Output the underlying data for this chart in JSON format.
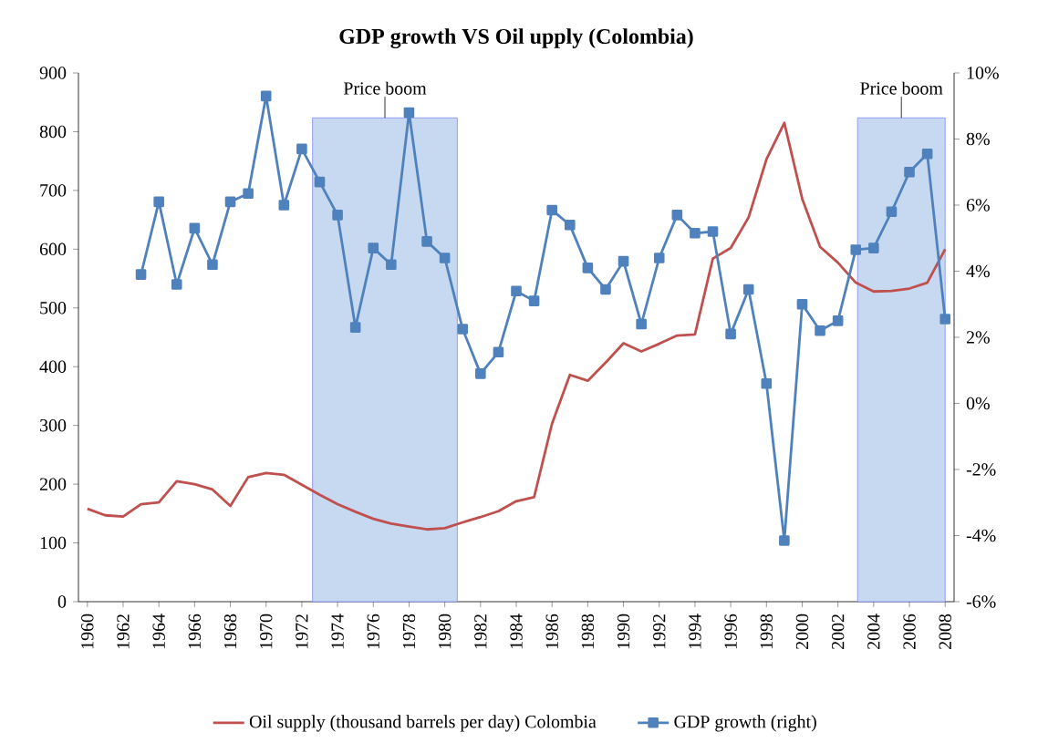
{
  "chart_data": {
    "type": "line",
    "title": "GDP growth VS Oil upply (Colombia)",
    "x": [
      1960,
      1961,
      1962,
      1963,
      1964,
      1965,
      1966,
      1967,
      1968,
      1969,
      1970,
      1971,
      1972,
      1973,
      1974,
      1975,
      1976,
      1977,
      1978,
      1979,
      1980,
      1981,
      1982,
      1983,
      1984,
      1985,
      1986,
      1987,
      1988,
      1989,
      1990,
      1991,
      1992,
      1993,
      1994,
      1995,
      1996,
      1997,
      1998,
      1999,
      2000,
      2001,
      2002,
      2003,
      2004,
      2005,
      2006,
      2007,
      2008
    ],
    "series": [
      {
        "name": "Oil supply (thousand barrels per day) Colombia",
        "color": "#c0504d",
        "marker": "none",
        "values": [
          158,
          147,
          145,
          166,
          169,
          205,
          200,
          191,
          163,
          212,
          219,
          216,
          199,
          182,
          166,
          153,
          141,
          133,
          128,
          123,
          125,
          135,
          144,
          154,
          171,
          178,
          303,
          386,
          376,
          407,
          440,
          426,
          439,
          453,
          455,
          584,
          602,
          654,
          753,
          815,
          686,
          604,
          577,
          543,
          528,
          529,
          533,
          543,
          600
        ]
      },
      {
        "name": "GDP growth (right)",
        "color": "#4f81bd",
        "marker": "square",
        "axis": "y2",
        "values": [
          null,
          null,
          null,
          3.9,
          6.1,
          3.6,
          5.3,
          4.2,
          6.1,
          6.35,
          9.3,
          6.0,
          7.7,
          6.7,
          5.7,
          2.3,
          4.7,
          4.2,
          8.8,
          4.9,
          4.4,
          2.25,
          0.9,
          1.55,
          3.4,
          3.1,
          5.85,
          5.4,
          4.1,
          3.45,
          4.3,
          2.4,
          4.4,
          5.7,
          5.15,
          5.2,
          2.1,
          3.45,
          0.6,
          -4.15,
          3.0,
          2.2,
          2.5,
          4.65,
          4.7,
          5.8,
          7.0,
          7.55,
          2.55
        ]
      }
    ],
    "xlim": [
      1959.5,
      2008.5
    ],
    "xticks": [
      1960,
      1962,
      1964,
      1966,
      1968,
      1970,
      1972,
      1974,
      1976,
      1978,
      1980,
      1982,
      1984,
      1986,
      1988,
      1990,
      1992,
      1994,
      1996,
      1998,
      2000,
      2002,
      2004,
      2006,
      2008
    ],
    "ylim": [
      0,
      900
    ],
    "yticks": [
      0,
      100,
      200,
      300,
      400,
      500,
      600,
      700,
      800,
      900
    ],
    "y2lim": [
      -6,
      10
    ],
    "y2ticks": [
      {
        "value": -6,
        "label": "-6%"
      },
      {
        "value": -4,
        "label": "-4%"
      },
      {
        "value": -2,
        "label": "-2%"
      },
      {
        "value": 0,
        "label": "0%"
      },
      {
        "value": 2,
        "label": "2%"
      },
      {
        "value": 4,
        "label": "4%"
      },
      {
        "value": 6,
        "label": "6%"
      },
      {
        "value": 8,
        "label": "8%"
      },
      {
        "value": 10,
        "label": "10%"
      }
    ],
    "bands": [
      {
        "axis": "x",
        "from": 1972.6,
        "to": 1980.7,
        "label": "Price boom",
        "color": "#c6d9f1"
      },
      {
        "axis": "x",
        "from": 2003.1,
        "to": 2008,
        "label": "Price boom",
        "color": "#c6d9f1"
      }
    ],
    "legend": "bottom",
    "grid": false
  }
}
